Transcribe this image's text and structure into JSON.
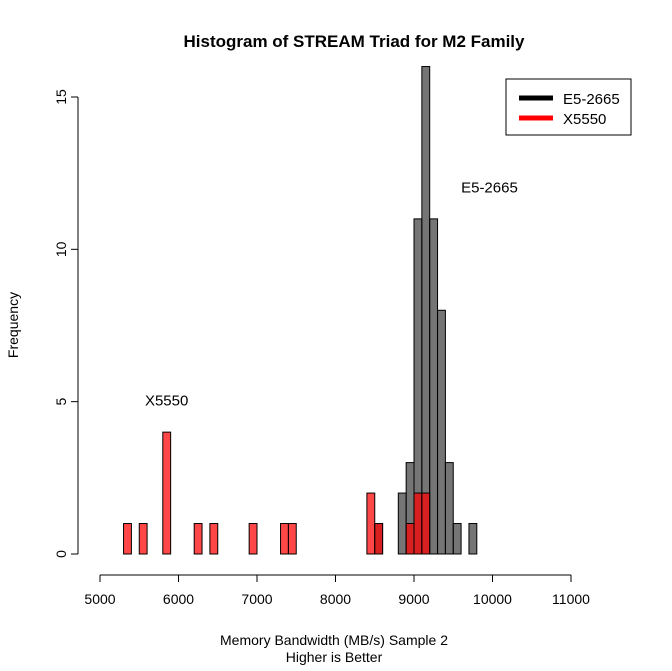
{
  "chart_data": {
    "type": "bar",
    "title": "Histogram of STREAM Triad for M2 Family",
    "xlabel": "Memory Bandwidth (MB/s) Sample 2",
    "xlabel2": "Higher is Better",
    "ylabel": "Frequency",
    "xlim": [
      5000,
      11000
    ],
    "ylim": [
      0,
      15
    ],
    "xticks": [
      5000,
      6000,
      7000,
      8000,
      9000,
      10000,
      11000
    ],
    "yticks": [
      0,
      5,
      10,
      15
    ],
    "bin_width": 100,
    "grid": false,
    "legend_position": "top-right",
    "legend": [
      {
        "name": "E5-2665",
        "color": "#000000"
      },
      {
        "name": "X5550",
        "color": "#ff0000"
      }
    ],
    "annotations": [
      {
        "text": "E5-2665",
        "x": 9600,
        "y": 12
      },
      {
        "text": "X5550",
        "x": 5700,
        "y": 5
      }
    ],
    "series": [
      {
        "name": "E5-2665",
        "color": "#404040",
        "bins": [
          {
            "start": 8500,
            "count": 1
          },
          {
            "start": 8800,
            "count": 2
          },
          {
            "start": 8900,
            "count": 3
          },
          {
            "start": 9000,
            "count": 11
          },
          {
            "start": 9100,
            "count": 16
          },
          {
            "start": 9200,
            "count": 11
          },
          {
            "start": 9300,
            "count": 8
          },
          {
            "start": 9400,
            "count": 3
          },
          {
            "start": 9500,
            "count": 1
          },
          {
            "start": 9700,
            "count": 1
          }
        ]
      },
      {
        "name": "X5550",
        "color": "#ff0000",
        "bins": [
          {
            "start": 5300,
            "count": 1
          },
          {
            "start": 5500,
            "count": 1
          },
          {
            "start": 5800,
            "count": 4
          },
          {
            "start": 6200,
            "count": 1
          },
          {
            "start": 6400,
            "count": 1
          },
          {
            "start": 6900,
            "count": 1
          },
          {
            "start": 7300,
            "count": 1
          },
          {
            "start": 7400,
            "count": 1
          },
          {
            "start": 8400,
            "count": 2
          },
          {
            "start": 8500,
            "count": 1
          },
          {
            "start": 8900,
            "count": 1
          },
          {
            "start": 9000,
            "count": 2
          },
          {
            "start": 9100,
            "count": 2
          }
        ]
      }
    ]
  }
}
